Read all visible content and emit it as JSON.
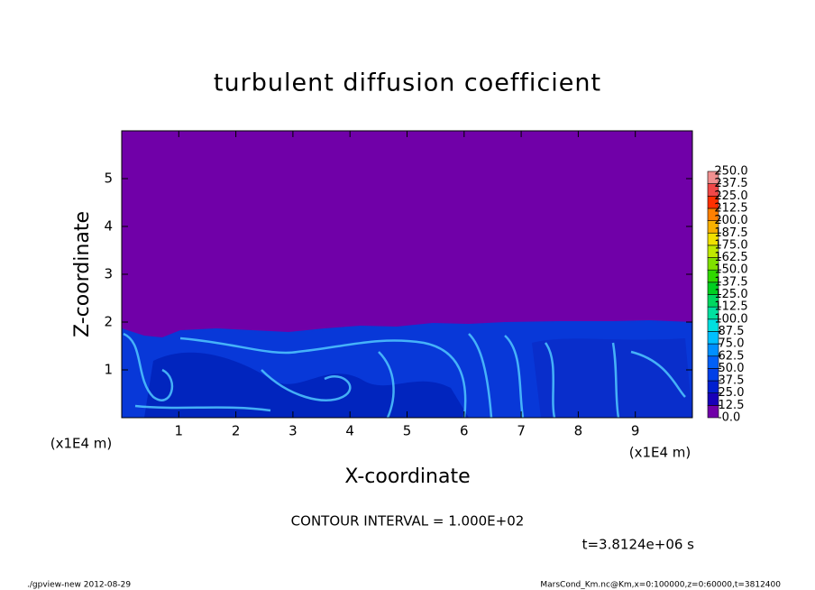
{
  "chart_data": {
    "type": "contour",
    "title": "turbulent diffusion coefficient",
    "xlabel": "X-coordinate",
    "ylabel": "Z-coordinate",
    "xunit": "(x1E4 m)",
    "yunit": "(x1E4 m)",
    "xlim": [
      0,
      10
    ],
    "ylim": [
      0,
      6
    ],
    "xticks": [
      1,
      2,
      3,
      4,
      5,
      6,
      7,
      8,
      9
    ],
    "yticks": [
      1,
      2,
      3,
      4,
      5
    ],
    "note": "CONTOUR INTERVAL = 1.000E+02",
    "time": "t=3.8124e+06 s",
    "colorbar": {
      "levels": [
        {
          "value": 0,
          "label": "0.0"
        },
        12.5,
        {
          "value": 25,
          "label": "25.0"
        },
        37.5,
        {
          "value": 50,
          "label": "50.0"
        },
        62.5,
        {
          "value": 75,
          "label": "75.0"
        },
        87.5,
        {
          "value": 100,
          "label": "100.0"
        },
        112.5,
        {
          "value": 125,
          "label": "125.0"
        },
        137.5,
        {
          "value": 150,
          "label": "150.0"
        },
        162.5,
        {
          "value": 175,
          "label": "175.0"
        },
        187.5,
        {
          "value": 200,
          "label": "200.0"
        },
        212.5,
        {
          "value": 225,
          "label": "225.0"
        },
        237.5,
        {
          "value": 250,
          "label": "250.0"
        }
      ],
      "colors": [
        "#7000a8",
        "#1800b8",
        "#0020d0",
        "#0040e8",
        "#0060f8",
        "#0090ff",
        "#00c0ff",
        "#00e0e0",
        "#00e0a0",
        "#00d860",
        "#00d020",
        "#30d800",
        "#80e000",
        "#c0e800",
        "#f0e000",
        "#f8b000",
        "#ff8000",
        "#ff3000",
        "#f04848",
        "#f09090"
      ]
    }
  },
  "footer": {
    "left": "./gpview-new  2012-08-29",
    "right": "MarsCond_Km.nc@Km,x=0:100000,z=0:60000,t=3812400"
  }
}
